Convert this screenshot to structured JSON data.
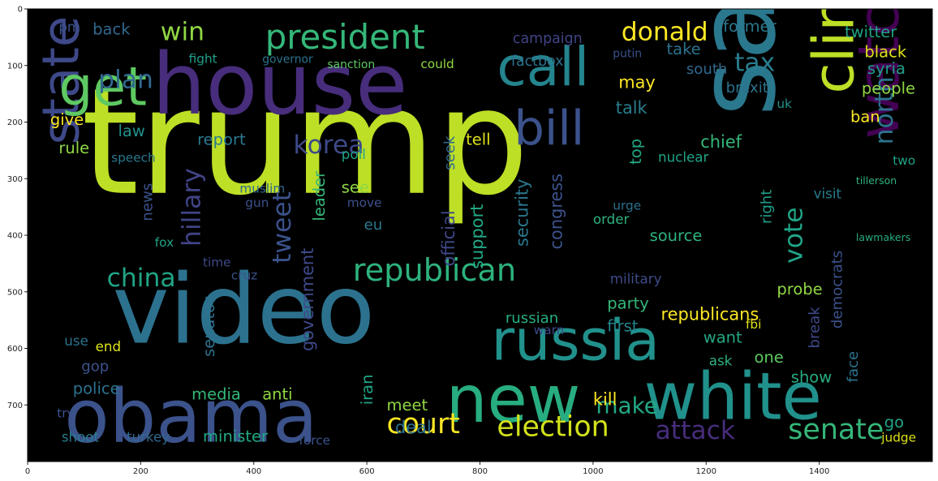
{
  "chart_data": {
    "type": "wordcloud",
    "background": "#000000",
    "xlim": [
      0,
      1600
    ],
    "ylim": [
      800,
      0
    ],
    "x_ticks": [
      0,
      200,
      400,
      600,
      800,
      1000,
      1200,
      1400
    ],
    "y_ticks": [
      0,
      100,
      200,
      300,
      400,
      500,
      600,
      700
    ],
    "words": [
      {
        "text": "trump",
        "x": 95,
        "y": 325,
        "size": 260,
        "color": "#bddf26"
      },
      {
        "text": "video",
        "x": 150,
        "y": 590,
        "size": 170,
        "color": "#2c728e"
      },
      {
        "text": "house",
        "x": 220,
        "y": 185,
        "size": 150,
        "color": "#472d7b"
      },
      {
        "text": "obama",
        "x": 65,
        "y": 765,
        "size": 130,
        "color": "#3b528b"
      },
      {
        "text": "white",
        "x": 1090,
        "y": 725,
        "size": 115,
        "color": "#21918c"
      },
      {
        "text": "new",
        "x": 740,
        "y": 730,
        "size": 115,
        "color": "#27ad81"
      },
      {
        "text": "say",
        "x": 1320,
        "y": 190,
        "size": 190,
        "color": "#2a788e",
        "rotate": true
      },
      {
        "text": "clinton",
        "x": 1460,
        "y": 150,
        "size": 100,
        "color": "#bddf26",
        "rotate": true
      },
      {
        "text": "watch",
        "x": 1540,
        "y": 230,
        "size": 100,
        "color": "#440154",
        "rotate": true
      },
      {
        "text": "russia",
        "x": 820,
        "y": 620,
        "size": 100,
        "color": "#21918c"
      },
      {
        "text": "call",
        "x": 830,
        "y": 135,
        "size": 95,
        "color": "#25858e"
      },
      {
        "text": "bill",
        "x": 860,
        "y": 240,
        "size": 85,
        "color": "#3b528b"
      },
      {
        "text": "state",
        "x": 90,
        "y": 240,
        "size": 90,
        "color": "#3e4989",
        "rotate": true
      },
      {
        "text": "get",
        "x": 55,
        "y": 170,
        "size": 95,
        "color": "#5ec962"
      },
      {
        "text": "president",
        "x": 420,
        "y": 70,
        "size": 60,
        "color": "#35b779"
      },
      {
        "text": "republican",
        "x": 575,
        "y": 480,
        "size": 55,
        "color": "#2db27d"
      },
      {
        "text": "court",
        "x": 635,
        "y": 750,
        "size": 50,
        "color": "#fde725"
      },
      {
        "text": "election",
        "x": 830,
        "y": 755,
        "size": 50,
        "color": "#d2e21b"
      },
      {
        "text": "senate",
        "x": 1345,
        "y": 760,
        "size": 50,
        "color": "#35b779"
      },
      {
        "text": "attack",
        "x": 1110,
        "y": 760,
        "size": 45,
        "color": "#472d7b"
      },
      {
        "text": "korea",
        "x": 470,
        "y": 255,
        "size": 45,
        "color": "#3e4989"
      },
      {
        "text": "china",
        "x": 140,
        "y": 490,
        "size": 45,
        "color": "#20a486"
      },
      {
        "text": "tweet",
        "x": 465,
        "y": 450,
        "size": 45,
        "color": "#3b528b",
        "rotate": true
      },
      {
        "text": "donald",
        "x": 1050,
        "y": 55,
        "size": 45,
        "color": "#fde725"
      },
      {
        "text": "win",
        "x": 235,
        "y": 55,
        "size": 45,
        "color": "#8fd744"
      },
      {
        "text": "plan",
        "x": 125,
        "y": 140,
        "size": 45,
        "color": "#31688e"
      },
      {
        "text": "hillary",
        "x": 305,
        "y": 420,
        "size": 45,
        "color": "#414487",
        "rotate": true
      },
      {
        "text": "tax",
        "x": 1250,
        "y": 110,
        "size": 45,
        "color": "#287c8e"
      },
      {
        "text": "north",
        "x": 1530,
        "y": 240,
        "size": 45,
        "color": "#2c728e",
        "rotate": true
      },
      {
        "text": "vote",
        "x": 1370,
        "y": 450,
        "size": 45,
        "color": "#20a486",
        "rotate": true
      },
      {
        "text": "make",
        "x": 1005,
        "y": 715,
        "size": 40,
        "color": "#22a884"
      },
      {
        "text": "government",
        "x": 505,
        "y": 605,
        "size": 30,
        "color": "#3e4989",
        "rotate": true
      },
      {
        "text": "official",
        "x": 755,
        "y": 455,
        "size": 30,
        "color": "#3e4989",
        "rotate": true
      },
      {
        "text": "security",
        "x": 885,
        "y": 420,
        "size": 30,
        "color": "#2a788e",
        "rotate": true
      },
      {
        "text": "support",
        "x": 805,
        "y": 460,
        "size": 30,
        "color": "#22a884",
        "rotate": true
      },
      {
        "text": "congress",
        "x": 945,
        "y": 425,
        "size": 30,
        "color": "#3b528b",
        "rotate": true
      },
      {
        "text": "campaign",
        "x": 858,
        "y": 60,
        "size": 25,
        "color": "#414487"
      },
      {
        "text": "factbox",
        "x": 855,
        "y": 100,
        "size": 25,
        "color": "#2c728e"
      },
      {
        "text": "may",
        "x": 1045,
        "y": 140,
        "size": 30,
        "color": "#fde725"
      },
      {
        "text": "talk",
        "x": 1040,
        "y": 185,
        "size": 30,
        "color": "#287c8e"
      },
      {
        "text": "take",
        "x": 1130,
        "y": 80,
        "size": 28,
        "color": "#2c728e"
      },
      {
        "text": "south",
        "x": 1165,
        "y": 115,
        "size": 26,
        "color": "#31688e"
      },
      {
        "text": "brexit",
        "x": 1235,
        "y": 148,
        "size": 26,
        "color": "#2c728e"
      },
      {
        "text": "former",
        "x": 1230,
        "y": 40,
        "size": 28,
        "color": "#2a788e"
      },
      {
        "text": "twitter",
        "x": 1445,
        "y": 50,
        "size": 28,
        "color": "#20a486"
      },
      {
        "text": "black",
        "x": 1480,
        "y": 85,
        "size": 28,
        "color": "#dde318"
      },
      {
        "text": "syria",
        "x": 1485,
        "y": 115,
        "size": 28,
        "color": "#1f9e89"
      },
      {
        "text": "people",
        "x": 1475,
        "y": 150,
        "size": 28,
        "color": "#8fd744"
      },
      {
        "text": "ban",
        "x": 1455,
        "y": 200,
        "size": 28,
        "color": "#fde725"
      },
      {
        "text": "chief",
        "x": 1190,
        "y": 245,
        "size": 30,
        "color": "#35b779"
      },
      {
        "text": "nuclear",
        "x": 1115,
        "y": 270,
        "size": 24,
        "color": "#20a486"
      },
      {
        "text": "top",
        "x": 1085,
        "y": 275,
        "size": 28,
        "color": "#22a884",
        "rotate": true
      },
      {
        "text": "source",
        "x": 1100,
        "y": 410,
        "size": 28,
        "color": "#2db27d"
      },
      {
        "text": "right",
        "x": 1315,
        "y": 380,
        "size": 26,
        "color": "#1f9e89",
        "rotate": true
      },
      {
        "text": "visit",
        "x": 1390,
        "y": 335,
        "size": 24,
        "color": "#287c8e"
      },
      {
        "text": "probe",
        "x": 1325,
        "y": 505,
        "size": 28,
        "color": "#8fd744"
      },
      {
        "text": "democrats",
        "x": 1440,
        "y": 565,
        "size": 26,
        "color": "#3b528b",
        "rotate": true
      },
      {
        "text": "break",
        "x": 1400,
        "y": 600,
        "size": 26,
        "color": "#3e4989",
        "rotate": true
      },
      {
        "text": "face",
        "x": 1468,
        "y": 660,
        "size": 26,
        "color": "#2c728e",
        "rotate": true
      },
      {
        "text": "republicans",
        "x": 1120,
        "y": 550,
        "size": 30,
        "color": "#fde725"
      },
      {
        "text": "want",
        "x": 1195,
        "y": 590,
        "size": 28,
        "color": "#22a884"
      },
      {
        "text": "fbi",
        "x": 1270,
        "y": 565,
        "size": 22,
        "color": "#dde318"
      },
      {
        "text": "ask",
        "x": 1205,
        "y": 630,
        "size": 24,
        "color": "#2db27d"
      },
      {
        "text": "one",
        "x": 1285,
        "y": 625,
        "size": 28,
        "color": "#5ec962"
      },
      {
        "text": "show",
        "x": 1350,
        "y": 660,
        "size": 28,
        "color": "#27ad81"
      },
      {
        "text": "party",
        "x": 1025,
        "y": 530,
        "size": 28,
        "color": "#35b779"
      },
      {
        "text": "first",
        "x": 1025,
        "y": 570,
        "size": 28,
        "color": "#25858e"
      },
      {
        "text": "warn",
        "x": 895,
        "y": 575,
        "size": 22,
        "color": "#3e4989"
      },
      {
        "text": "russian",
        "x": 845,
        "y": 555,
        "size": 26,
        "color": "#27ad81"
      },
      {
        "text": "kill",
        "x": 1000,
        "y": 700,
        "size": 30,
        "color": "#fde725"
      },
      {
        "text": "meet",
        "x": 635,
        "y": 710,
        "size": 28,
        "color": "#8fd744"
      },
      {
        "text": "deal",
        "x": 650,
        "y": 750,
        "size": 30,
        "color": "#2c728e"
      },
      {
        "text": "iran",
        "x": 610,
        "y": 700,
        "size": 28,
        "color": "#20a486",
        "rotate": true
      },
      {
        "text": "media",
        "x": 290,
        "y": 690,
        "size": 28,
        "color": "#35b779"
      },
      {
        "text": "anti",
        "x": 415,
        "y": 690,
        "size": 28,
        "color": "#8fd744"
      },
      {
        "text": "police",
        "x": 80,
        "y": 680,
        "size": 28,
        "color": "#2c728e"
      },
      {
        "text": "gop",
        "x": 95,
        "y": 640,
        "size": 26,
        "color": "#3b528b"
      },
      {
        "text": "senator",
        "x": 330,
        "y": 615,
        "size": 28,
        "color": "#2c728e",
        "rotate": true
      },
      {
        "text": "report",
        "x": 300,
        "y": 240,
        "size": 28,
        "color": "#2a788e"
      },
      {
        "text": "law",
        "x": 160,
        "y": 225,
        "size": 28,
        "color": "#21918c"
      },
      {
        "text": "give",
        "x": 40,
        "y": 205,
        "size": 28,
        "color": "#fde725"
      },
      {
        "text": "rule",
        "x": 55,
        "y": 255,
        "size": 28,
        "color": "#8fd744"
      },
      {
        "text": "news",
        "x": 220,
        "y": 375,
        "size": 26,
        "color": "#3b528b",
        "rotate": true
      },
      {
        "text": "fox",
        "x": 225,
        "y": 420,
        "size": 22,
        "color": "#20a486"
      },
      {
        "text": "time",
        "x": 310,
        "y": 455,
        "size": 22,
        "color": "#3e4989"
      },
      {
        "text": "cruz",
        "x": 360,
        "y": 478,
        "size": 22,
        "color": "#3b528b"
      },
      {
        "text": "see",
        "x": 555,
        "y": 325,
        "size": 28,
        "color": "#8fd744"
      },
      {
        "text": "eu",
        "x": 595,
        "y": 390,
        "size": 26,
        "color": "#2a788e"
      },
      {
        "text": "move",
        "x": 565,
        "y": 350,
        "size": 22,
        "color": "#3b528b"
      },
      {
        "text": "poll",
        "x": 555,
        "y": 265,
        "size": 24,
        "color": "#20a486"
      },
      {
        "text": "tell",
        "x": 775,
        "y": 240,
        "size": 28,
        "color": "#dde318"
      },
      {
        "text": "seek",
        "x": 755,
        "y": 285,
        "size": 26,
        "color": "#31688e",
        "rotate": true
      },
      {
        "text": "leader",
        "x": 525,
        "y": 375,
        "size": 28,
        "color": "#35b779",
        "rotate": true
      },
      {
        "text": "muslim",
        "x": 375,
        "y": 325,
        "size": 22,
        "color": "#31688e"
      },
      {
        "text": "gun",
        "x": 385,
        "y": 350,
        "size": 22,
        "color": "#3b528b"
      },
      {
        "text": "order",
        "x": 1000,
        "y": 380,
        "size": 24,
        "color": "#2db27d"
      },
      {
        "text": "urge",
        "x": 1035,
        "y": 355,
        "size": 22,
        "color": "#2c728e"
      },
      {
        "text": "military",
        "x": 1030,
        "y": 485,
        "size": 24,
        "color": "#3e4989"
      },
      {
        "text": "end",
        "x": 120,
        "y": 605,
        "size": 24,
        "color": "#dde318"
      },
      {
        "text": "use",
        "x": 65,
        "y": 595,
        "size": 24,
        "color": "#2c728e"
      },
      {
        "text": "minister",
        "x": 310,
        "y": 765,
        "size": 28,
        "color": "#22a884"
      },
      {
        "text": "force",
        "x": 480,
        "y": 770,
        "size": 22,
        "color": "#3b528b"
      },
      {
        "text": "turkey",
        "x": 175,
        "y": 765,
        "size": 24,
        "color": "#31688e"
      },
      {
        "text": "shoot",
        "x": 60,
        "y": 765,
        "size": 24,
        "color": "#287c8e"
      },
      {
        "text": "try",
        "x": 52,
        "y": 722,
        "size": 22,
        "color": "#3b528b"
      },
      {
        "text": "judge",
        "x": 1510,
        "y": 765,
        "size": 22,
        "color": "#dde318"
      },
      {
        "text": "go",
        "x": 1515,
        "y": 740,
        "size": 28,
        "color": "#20a486"
      },
      {
        "text": "two",
        "x": 1530,
        "y": 275,
        "size": 22,
        "color": "#20a486"
      },
      {
        "text": "back",
        "x": 115,
        "y": 45,
        "size": 28,
        "color": "#31688e"
      },
      {
        "text": "pm",
        "x": 55,
        "y": 40,
        "size": 24,
        "color": "#3b528b"
      },
      {
        "text": "fight",
        "x": 285,
        "y": 95,
        "size": 22,
        "color": "#1f9e89"
      },
      {
        "text": "governor",
        "x": 415,
        "y": 95,
        "size": 20,
        "color": "#2c728e"
      },
      {
        "text": "sanction",
        "x": 530,
        "y": 105,
        "size": 20,
        "color": "#5ec962"
      },
      {
        "text": "could",
        "x": 695,
        "y": 105,
        "size": 22,
        "color": "#8fd744"
      },
      {
        "text": "putin",
        "x": 1035,
        "y": 85,
        "size": 20,
        "color": "#3b528b"
      },
      {
        "text": "lawmakers",
        "x": 1465,
        "y": 410,
        "size": 18,
        "color": "#27ad81"
      },
      {
        "text": "tillerson",
        "x": 1465,
        "y": 310,
        "size": 18,
        "color": "#2db27d"
      },
      {
        "text": "speech",
        "x": 148,
        "y": 270,
        "size": 22,
        "color": "#2a788e"
      },
      {
        "text": "uk",
        "x": 1325,
        "y": 175,
        "size": 22,
        "color": "#21918c"
      }
    ]
  }
}
